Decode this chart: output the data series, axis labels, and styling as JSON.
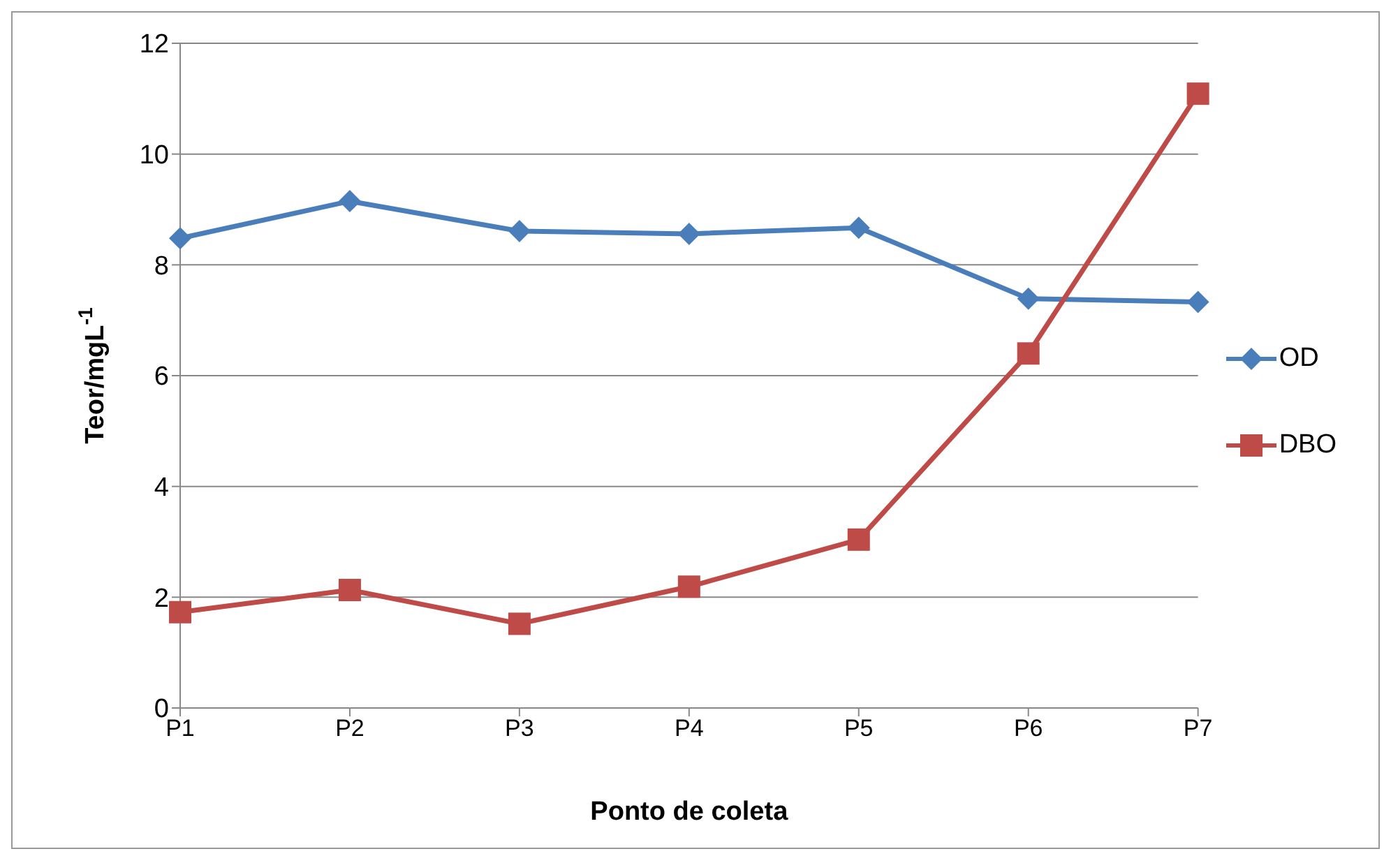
{
  "chart_data": {
    "type": "line",
    "xlabel": "Ponto de coleta",
    "ylabel": "Teor/mgL$^{-1}$",
    "categories": [
      "P1",
      "P2",
      "P3",
      "P4",
      "P5",
      "P6",
      "P7"
    ],
    "series": [
      {
        "name": "OD",
        "color": "#4a7ebb",
        "marker": "diamond",
        "values": [
          8.48,
          9.15,
          8.61,
          8.56,
          8.67,
          7.39,
          7.33
        ]
      },
      {
        "name": "DBO",
        "color": "#be4b48",
        "marker": "square",
        "values": [
          1.73,
          2.13,
          1.52,
          2.19,
          3.04,
          6.4,
          11.09
        ]
      }
    ],
    "ylim": [
      0,
      12
    ],
    "yticks": [
      0,
      2,
      4,
      6,
      8,
      10,
      12
    ],
    "grid": "y",
    "legend": "right",
    "line_style": "solid"
  }
}
